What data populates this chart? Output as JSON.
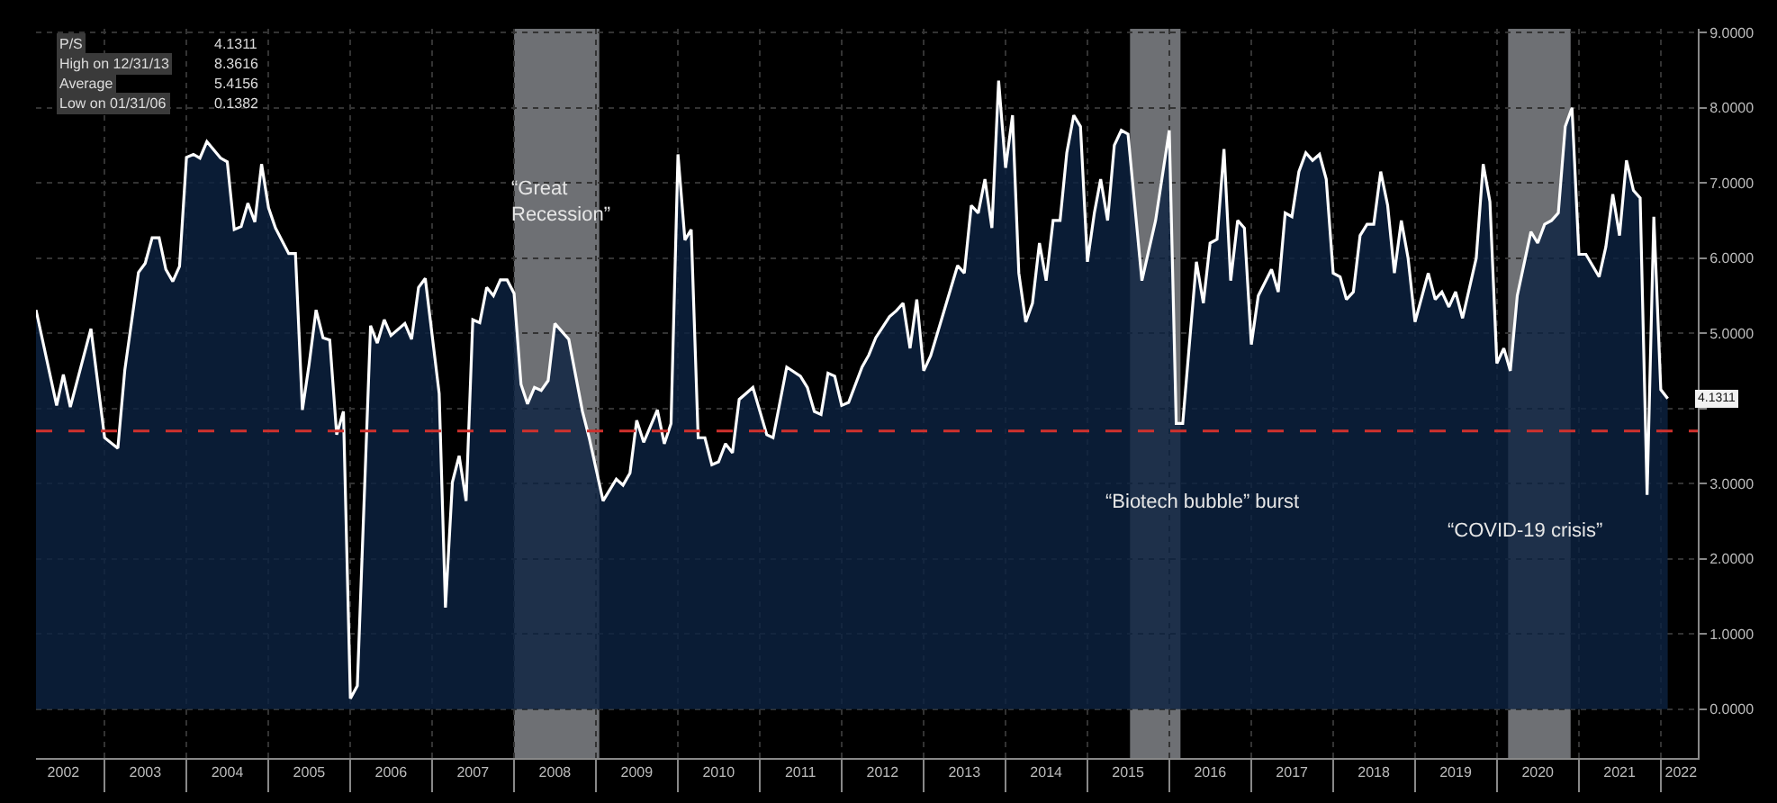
{
  "chart_data": {
    "type": "area",
    "xlim": [
      "2002-03-01",
      "2022-06-15"
    ],
    "xticks": [
      {
        "value": "2002-07-01",
        "label": "2002"
      },
      {
        "value": "2003-07-01",
        "label": "2003"
      },
      {
        "value": "2004-07-01",
        "label": "2004"
      },
      {
        "value": "2005-07-01",
        "label": "2005"
      },
      {
        "value": "2006-07-01",
        "label": "2006"
      },
      {
        "value": "2007-07-01",
        "label": "2007"
      },
      {
        "value": "2008-07-01",
        "label": "2008"
      },
      {
        "value": "2009-07-01",
        "label": "2009"
      },
      {
        "value": "2010-07-01",
        "label": "2010"
      },
      {
        "value": "2011-07-01",
        "label": "2011"
      },
      {
        "value": "2012-07-01",
        "label": "2012"
      },
      {
        "value": "2013-07-01",
        "label": "2013"
      },
      {
        "value": "2014-07-01",
        "label": "2014"
      },
      {
        "value": "2015-07-01",
        "label": "2015"
      },
      {
        "value": "2016-07-01",
        "label": "2016"
      },
      {
        "value": "2017-07-01",
        "label": "2017"
      },
      {
        "value": "2018-07-01",
        "label": "2018"
      },
      {
        "value": "2019-07-01",
        "label": "2019"
      },
      {
        "value": "2020-07-01",
        "label": "2020"
      },
      {
        "value": "2021-07-01",
        "label": "2021"
      },
      {
        "value": "2022-04-01",
        "label": "2022"
      },
      {
        "value": "2003-01-01",
        "label": null
      },
      {
        "value": "2004-01-01",
        "label": null
      },
      {
        "value": "2005-01-01",
        "label": null
      },
      {
        "value": "2006-01-01",
        "label": null
      },
      {
        "value": "2007-01-01",
        "label": null
      },
      {
        "value": "2008-01-01",
        "label": null
      },
      {
        "value": "2009-01-01",
        "label": null
      },
      {
        "value": "2010-01-01",
        "label": null
      },
      {
        "value": "2011-01-01",
        "label": null
      },
      {
        "value": "2012-01-01",
        "label": null
      },
      {
        "value": "2013-01-01",
        "label": null
      },
      {
        "value": "2014-01-01",
        "label": null
      },
      {
        "value": "2015-01-01",
        "label": null
      },
      {
        "value": "2016-01-01",
        "label": null
      },
      {
        "value": "2017-01-01",
        "label": null
      },
      {
        "value": "2018-01-01",
        "label": null
      },
      {
        "value": "2019-01-01",
        "label": null
      },
      {
        "value": "2020-01-01",
        "label": null
      },
      {
        "value": "2021-01-01",
        "label": null
      },
      {
        "value": "2022-01-01",
        "label": null
      }
    ],
    "ylim": [
      -0.65,
      9.05
    ],
    "yticks": [
      {
        "value": 0,
        "label": "0.0000"
      },
      {
        "value": 1,
        "label": "1.0000"
      },
      {
        "value": 2,
        "label": "2.0000"
      },
      {
        "value": 3,
        "label": "3.0000"
      },
      {
        "value": 4,
        "label": null
      },
      {
        "value": 5,
        "label": "5.0000"
      },
      {
        "value": 6,
        "label": "6.0000"
      },
      {
        "value": 7,
        "label": "7.0000"
      },
      {
        "value": 8,
        "label": "8.0000"
      },
      {
        "value": 9,
        "label": "9.0000"
      }
    ],
    "grid": true,
    "series": [
      {
        "color": "#ffffff",
        "x": [
          "2002-03",
          "2002-06",
          "2002-07",
          "2002-08",
          "2002-11",
          "2003-01",
          "2003-03",
          "2003-04",
          "2003-06",
          "2003-07",
          "2003-08",
          "2003-09",
          "2003-10",
          "2003-11",
          "2003-12",
          "2004-01",
          "2004-02",
          "2004-03",
          "2004-04",
          "2004-06",
          "2004-07",
          "2004-08",
          "2004-09",
          "2004-10",
          "2004-11",
          "2004-12",
          "2005-01",
          "2005-02",
          "2005-04",
          "2005-05",
          "2005-06",
          "2005-07",
          "2005-08",
          "2005-09",
          "2005-10",
          "2005-11",
          "2005-12",
          "2006-01",
          "2006-02",
          "2006-04",
          "2006-05",
          "2006-06",
          "2006-07",
          "2006-09",
          "2006-10",
          "2006-11",
          "2006-12",
          "2007-02",
          "2007-03",
          "2007-04",
          "2007-05",
          "2007-06",
          "2007-07",
          "2007-08",
          "2007-09",
          "2007-10",
          "2007-11",
          "2007-12",
          "2008-01",
          "2008-02",
          "2008-03",
          "2008-04",
          "2008-05",
          "2008-06",
          "2008-07",
          "2008-09",
          "2008-11",
          "2008-12",
          "2009-02",
          "2009-04",
          "2009-05",
          "2009-06",
          "2009-07",
          "2009-08",
          "2009-10",
          "2009-11",
          "2009-12",
          "2010-01",
          "2010-02",
          "2010-03",
          "2010-04",
          "2010-05",
          "2010-06",
          "2010-07",
          "2010-08",
          "2010-09",
          "2010-10",
          "2010-11",
          "2010-12",
          "2011-02",
          "2011-03",
          "2011-05",
          "2011-07",
          "2011-08",
          "2011-09",
          "2011-10",
          "2011-11",
          "2011-12",
          "2012-01",
          "2012-02",
          "2012-04",
          "2012-05",
          "2012-06",
          "2012-08",
          "2012-09",
          "2012-10",
          "2012-11",
          "2012-12",
          "2013-01",
          "2013-02",
          "2013-06",
          "2013-07",
          "2013-08",
          "2013-09",
          "2013-10",
          "2013-11",
          "2013-12",
          "2014-01",
          "2014-02",
          "2014-03",
          "2014-04",
          "2014-05",
          "2014-06",
          "2014-07",
          "2014-08",
          "2014-09",
          "2014-10",
          "2014-11",
          "2014-12",
          "2015-01",
          "2015-02",
          "2015-03",
          "2015-04",
          "2015-05",
          "2015-06",
          "2015-07",
          "2015-09",
          "2015-11",
          "2016-01",
          "2016-02",
          "2016-03",
          "2016-04",
          "2016-05",
          "2016-06",
          "2016-07",
          "2016-08",
          "2016-09",
          "2016-10",
          "2016-11",
          "2016-12",
          "2017-01",
          "2017-02",
          "2017-04",
          "2017-05",
          "2017-06",
          "2017-07",
          "2017-08",
          "2017-09",
          "2017-10",
          "2017-11",
          "2017-12",
          "2018-01",
          "2018-02",
          "2018-03",
          "2018-04",
          "2018-05",
          "2018-06",
          "2018-07",
          "2018-08",
          "2018-09",
          "2018-10",
          "2018-11",
          "2018-12",
          "2019-01",
          "2019-03",
          "2019-04",
          "2019-05",
          "2019-06",
          "2019-07",
          "2019-08",
          "2019-10",
          "2019-11",
          "2019-12",
          "2020-01",
          "2020-02",
          "2020-03",
          "2020-04",
          "2020-06",
          "2020-07",
          "2020-08",
          "2020-09",
          "2020-10",
          "2020-11",
          "2020-12",
          "2021-01",
          "2021-02",
          "2021-04",
          "2021-05",
          "2021-06",
          "2021-07",
          "2021-08",
          "2021-09",
          "2021-10",
          "2021-11",
          "2021-12",
          "2022-01",
          "2022-02"
        ],
        "values": [
          5.31,
          4.04,
          4.45,
          4.02,
          5.06,
          3.61,
          3.47,
          4.51,
          5.81,
          5.93,
          6.27,
          6.27,
          5.85,
          5.69,
          5.89,
          7.34,
          7.38,
          7.33,
          7.55,
          7.33,
          7.28,
          6.38,
          6.42,
          6.73,
          6.48,
          7.25,
          6.67,
          6.4,
          6.06,
          6.06,
          3.98,
          4.59,
          5.31,
          4.94,
          4.91,
          3.65,
          3.96,
          0.14,
          0.31,
          5.1,
          4.87,
          5.18,
          4.97,
          5.13,
          4.92,
          5.61,
          5.73,
          4.2,
          1.35,
          3.02,
          3.37,
          2.77,
          5.18,
          5.14,
          5.61,
          5.5,
          5.71,
          5.71,
          5.53,
          4.32,
          4.06,
          4.28,
          4.24,
          4.37,
          5.13,
          4.92,
          3.96,
          3.61,
          2.77,
          3.06,
          2.98,
          3.14,
          3.84,
          3.55,
          3.98,
          3.53,
          3.8,
          7.38,
          6.24,
          6.38,
          3.61,
          3.61,
          3.25,
          3.29,
          3.53,
          3.41,
          4.12,
          4.2,
          4.28,
          3.65,
          3.61,
          4.55,
          4.43,
          4.28,
          3.96,
          3.92,
          4.47,
          4.43,
          4.04,
          4.08,
          4.55,
          4.71,
          4.94,
          5.22,
          5.3,
          5.4,
          4.8,
          5.45,
          4.5,
          4.7,
          5.9,
          5.8,
          6.7,
          6.6,
          7.05,
          6.4,
          8.36,
          7.2,
          7.9,
          5.8,
          5.15,
          5.4,
          6.2,
          5.7,
          6.5,
          6.5,
          7.4,
          7.9,
          7.75,
          5.95,
          6.6,
          7.05,
          6.5,
          7.5,
          7.7,
          7.65,
          5.7,
          6.5,
          7.7,
          3.8,
          3.8,
          4.9,
          5.95,
          5.4,
          6.2,
          6.25,
          7.45,
          5.7,
          6.5,
          6.4,
          4.85,
          5.5,
          5.85,
          5.55,
          6.6,
          6.55,
          7.15,
          7.4,
          7.3,
          7.38,
          7.05,
          5.8,
          5.75,
          5.45,
          5.55,
          6.3,
          6.45,
          6.45,
          7.15,
          6.7,
          5.8,
          6.5,
          6.0,
          5.15,
          5.8,
          5.45,
          5.55,
          5.35,
          5.55,
          5.2,
          6.0,
          7.25,
          6.75,
          4.6,
          4.8,
          4.5,
          5.5,
          6.35,
          6.2,
          6.45,
          6.5,
          6.6,
          7.75,
          8.0,
          6.05,
          6.05,
          5.75,
          6.15,
          6.85,
          6.3,
          7.3,
          6.9,
          6.8,
          2.85,
          6.55,
          4.25,
          4.13
        ]
      }
    ],
    "ref_lines": [
      {
        "axis": "y",
        "value": 3.7,
        "color": "#d0312d",
        "line_style": "dashed"
      }
    ],
    "bands": [
      {
        "axis": "x",
        "from": "2008-01-01",
        "to": "2009-01-15",
        "color": "#c8ccd4",
        "label": "“Great\nRecession”"
      },
      {
        "axis": "x",
        "from": "2015-07-10",
        "to": "2016-02-20",
        "color": "#c8ccd4",
        "label": "“Biotech bubble” burst"
      },
      {
        "axis": "x",
        "from": "2020-02-20",
        "to": "2020-11-25",
        "color": "#c8ccd4",
        "label": "“COVID-19 crisis”"
      }
    ],
    "annotations": [
      "P/S",
      "4.1311",
      "High on 12/31/13",
      "8.3616",
      "Average",
      "5.4156",
      "Low on 01/31/06",
      "0.1382",
      {
        "text": "4.1311",
        "x": "2022-02",
        "y": 4.13
      }
    ]
  }
}
